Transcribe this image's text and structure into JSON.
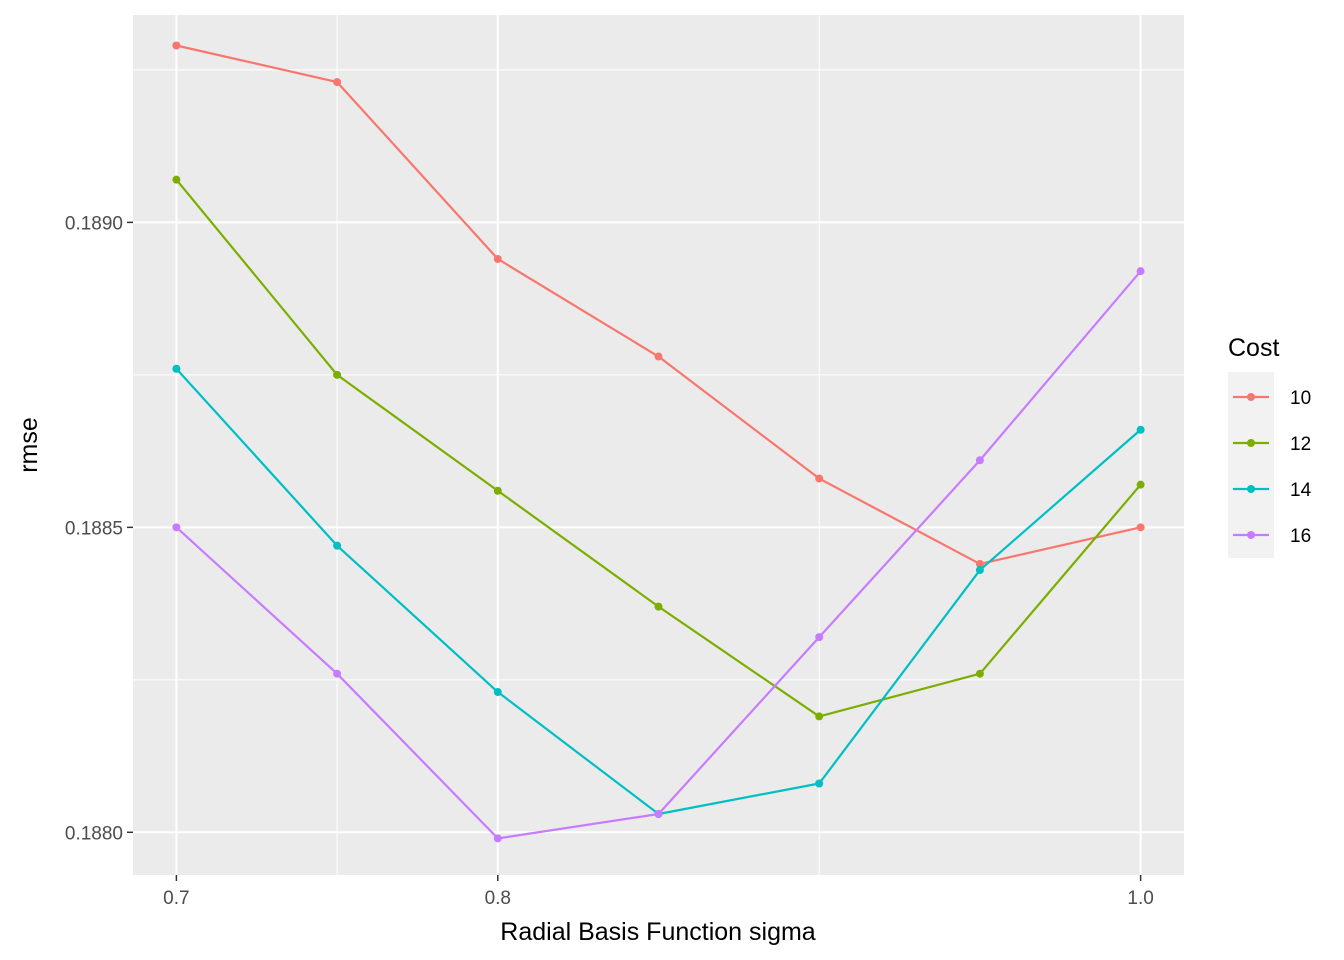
{
  "chart_data": {
    "type": "line",
    "title": "",
    "xlabel": "Radial Basis Function sigma",
    "ylabel": "rmse",
    "x": [
      0.7,
      0.75,
      0.8,
      0.85,
      0.9,
      0.95,
      1.0
    ],
    "xlim": [
      0.6865,
      1.0135
    ],
    "ylim": [
      0.18793,
      0.18934
    ],
    "x_major_ticks": [
      0.7,
      0.8,
      1.0
    ],
    "x_tick_labels": [
      "0.7",
      "0.8",
      "1.0"
    ],
    "x_grid": [
      0.7,
      0.75,
      0.8,
      0.9,
      1.0
    ],
    "y_major_ticks": [
      0.188,
      0.1885,
      0.189
    ],
    "y_tick_labels": [
      "0.1880",
      "0.1885",
      "0.1890"
    ],
    "y_minor_ticks": [
      0.18825,
      0.18875,
      0.18925
    ],
    "grid": true,
    "legend": {
      "title": "Cost",
      "position": "right"
    },
    "series": [
      {
        "name": "10",
        "color": "#F8766D",
        "values": [
          0.18929,
          0.18923,
          0.18894,
          0.18878,
          0.18858,
          0.18844,
          0.1885
        ]
      },
      {
        "name": "12",
        "color": "#7CAE00",
        "values": [
          0.18907,
          0.18875,
          0.18856,
          0.18837,
          0.18819,
          0.18826,
          0.18857
        ]
      },
      {
        "name": "14",
        "color": "#00BFC4",
        "values": [
          0.18876,
          0.18847,
          0.18823,
          0.18803,
          0.18808,
          0.18843,
          0.18866
        ]
      },
      {
        "name": "16",
        "color": "#C77CFF",
        "values": [
          0.1885,
          0.18826,
          0.18799,
          0.18803,
          0.18832,
          0.18861,
          0.18892
        ]
      }
    ]
  }
}
